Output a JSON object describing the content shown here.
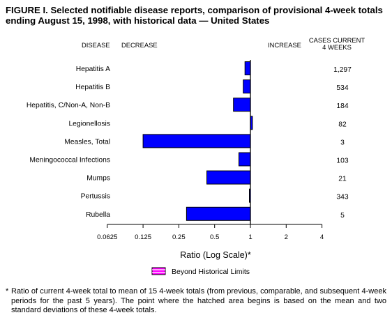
{
  "title": "FIGURE I. Selected notifiable disease reports, comparison of provisional 4-week totals ending August 15, 1998, with historical data — United States",
  "headers": {
    "disease": "DISEASE",
    "decrease": "DECREASE",
    "increase": "INCREASE",
    "cases_line1": "CASES CURRENT",
    "cases_line2": "4 WEEKS"
  },
  "legend": {
    "label": "Beyond Historical Limits"
  },
  "footnote": {
    "mark": "*",
    "text": "Ratio of current 4-week total to mean of 15 4-week totals (from previous, comparable, and subsequent 4-week periods for the past 5 years). The point where the hatched area begins is based on the mean and two standard deviations of these 4-week totals."
  },
  "colors": {
    "bar": "#0000ff",
    "bar_outline": "#000000",
    "legend_fill": "#ff00ff"
  },
  "chart_data": {
    "type": "bar",
    "orientation": "horizontal",
    "baseline": 1,
    "xscale": "log2",
    "xlabel": "Ratio (Log Scale)*",
    "xticks": [
      "0.0625",
      "0.125",
      "0.25",
      "0.5",
      "1",
      "2",
      "4"
    ],
    "xtick_values": [
      0.0625,
      0.125,
      0.25,
      0.5,
      1,
      2,
      4
    ],
    "categories": [
      "Hepatitis A",
      "Hepatitis B",
      "Hepatitis, C/Non-A, Non-B",
      "Legionellosis",
      "Measles, Total",
      "Meningococcal Infections",
      "Mumps",
      "Pertussis",
      "Rubella"
    ],
    "values": [
      0.9,
      0.87,
      0.72,
      1.04,
      0.125,
      0.8,
      0.43,
      0.98,
      0.29
    ],
    "cases": [
      "1,297",
      "534",
      "184",
      "82",
      "3",
      "103",
      "21",
      "343",
      "5"
    ],
    "grid": false,
    "legend_position": "bottom"
  }
}
